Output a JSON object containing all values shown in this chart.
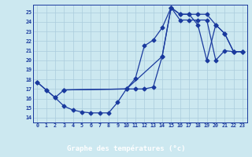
{
  "xlabel": "Graphe des températures (°c)",
  "bg_color": "#cce8f0",
  "grid_color": "#aaccdd",
  "line_color": "#1a3a9e",
  "xlim": [
    -0.5,
    23.5
  ],
  "ylim": [
    13.5,
    25.8
  ],
  "yticks": [
    14,
    15,
    16,
    17,
    18,
    19,
    20,
    21,
    22,
    23,
    24,
    25
  ],
  "xticks": [
    0,
    1,
    2,
    3,
    4,
    5,
    6,
    7,
    8,
    9,
    10,
    11,
    12,
    13,
    14,
    15,
    16,
    17,
    18,
    19,
    20,
    21,
    22,
    23
  ],
  "line1_x": [
    0,
    1,
    2,
    3,
    10,
    11,
    12,
    13,
    14,
    15,
    16,
    17,
    18,
    19,
    20,
    21,
    22,
    23
  ],
  "line1_y": [
    17.7,
    16.9,
    16.1,
    16.9,
    17.0,
    18.1,
    21.5,
    22.1,
    23.4,
    25.5,
    24.8,
    24.8,
    24.8,
    24.8,
    23.7,
    22.8,
    20.9,
    20.9
  ],
  "line2_x": [
    0,
    1,
    2,
    3,
    4,
    5,
    6,
    7,
    8,
    9,
    10,
    11,
    12,
    13,
    14,
    15,
    16,
    17,
    18,
    19,
    20,
    21,
    22,
    23
  ],
  "line2_y": [
    17.7,
    16.9,
    16.1,
    15.2,
    14.8,
    14.6,
    14.5,
    14.5,
    14.5,
    15.6,
    17.0,
    17.0,
    17.0,
    17.2,
    20.4,
    25.5,
    24.2,
    24.2,
    24.2,
    24.2,
    20.0,
    21.0,
    20.9,
    20.9
  ],
  "line3_x": [
    3,
    10,
    14,
    15,
    16,
    17,
    18,
    19,
    20,
    21,
    22,
    23
  ],
  "line3_y": [
    16.9,
    17.0,
    20.4,
    25.5,
    24.8,
    24.8,
    23.7,
    20.0,
    23.7,
    22.8,
    20.9,
    20.9
  ],
  "font_color": "#1a3a9e",
  "xlabel_bg": "#1a3a9e",
  "xlabel_fg": "#ffffff"
}
